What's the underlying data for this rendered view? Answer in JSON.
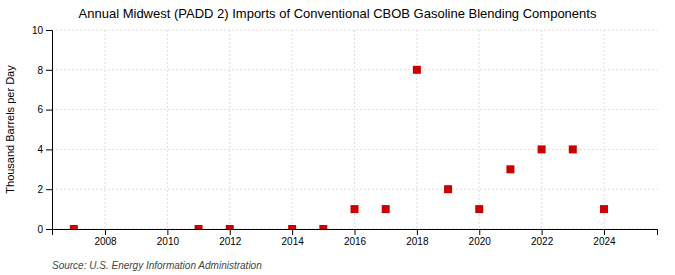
{
  "chart_data": {
    "type": "scatter",
    "title": "Annual Midwest (PADD 2) Imports of Conventional CBOB Gasoline Blending Components",
    "ylabel": "Thousand Barrels per Day",
    "source": "Source: U.S. Energy Information Administration",
    "x": [
      2007,
      2011,
      2012,
      2014,
      2015,
      2016,
      2017,
      2018,
      2019,
      2020,
      2021,
      2022,
      2023,
      2024
    ],
    "values": [
      0.0,
      0.0,
      0.0,
      0.0,
      0.0,
      1.0,
      1.0,
      8.0,
      2.0,
      1.0,
      3.0,
      4.0,
      4.0,
      1.0
    ],
    "color": "#cc0000",
    "marker": "square",
    "xlim": [
      2006.3,
      2025.7
    ],
    "xticks": [
      2008,
      2010,
      2012,
      2014,
      2016,
      2018,
      2020,
      2022,
      2024
    ],
    "ylim": [
      0,
      10
    ],
    "yticks": [
      0,
      2,
      4,
      6,
      8,
      10
    ],
    "grid": true
  }
}
